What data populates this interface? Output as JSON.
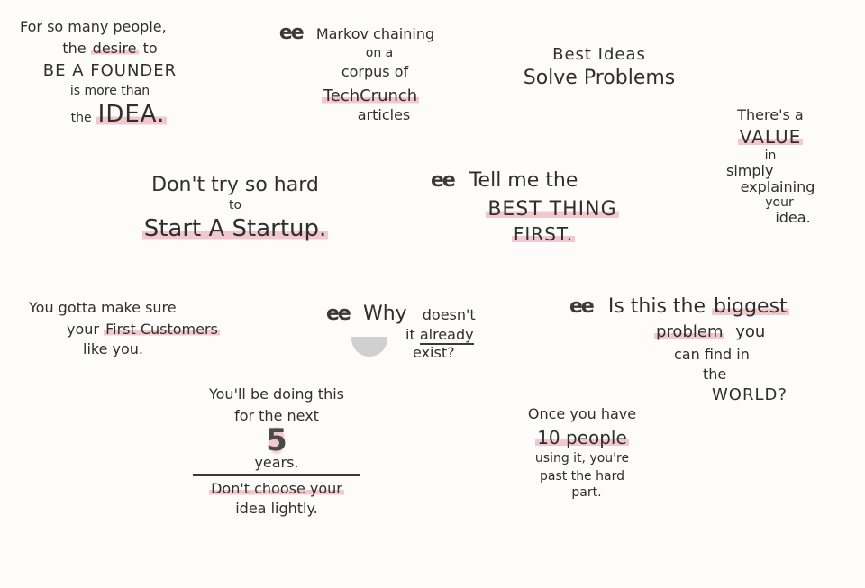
{
  "notes": {
    "founder": {
      "line1": "For so many people,",
      "line2_pre": "the",
      "line2_hl": "desire",
      "line2_post": "to",
      "line3": "BE A FOUNDER",
      "line4": "is more than",
      "line5_pre": "the",
      "line5_hl": "IDEA."
    },
    "markov": {
      "quote": "ee",
      "line1": "Markov chaining",
      "line2": "on a",
      "line3": "corpus of",
      "line4": "TechCrunch",
      "line5": "articles"
    },
    "best_ideas": {
      "line1": "Best Ideas",
      "line2": "Solve Problems"
    },
    "value": {
      "line1": "There's a",
      "line2": "VALUE",
      "line3": "in",
      "line4": "simply",
      "line5": "explaining",
      "line6": "your",
      "line7": "idea."
    },
    "dont_try": {
      "line1": "Don't try so hard",
      "line2": "to",
      "line3": "Start A Startup."
    },
    "tell_me": {
      "quote": "ee",
      "line1": "Tell me the",
      "line2": "BEST THING",
      "line3": "FIRST."
    },
    "customers": {
      "line1": "You gotta make sure",
      "line2_pre": "your",
      "line2_hl": "First Customers",
      "line3": "like you."
    },
    "why": {
      "quote": "ee",
      "word_why": "Why",
      "line1": "doesn't",
      "line2_pre": "it",
      "line2_hl": "already",
      "line3": "exist?"
    },
    "biggest": {
      "quote": "ee",
      "line1_pre": "Is this the",
      "line1_hl": "biggest",
      "line2_hl": "problem",
      "line2_post": "you",
      "line3": "can find in",
      "line4": "the",
      "line5": "WORLD?"
    },
    "five_years": {
      "line1": "You'll be doing this",
      "line2": "for the next",
      "line3": "5",
      "line4": "years.",
      "line5": "Don't choose your",
      "line6": "idea lightly."
    },
    "ten_people": {
      "line1": "Once you have",
      "line2": "10 people",
      "line3": "using it, you're",
      "line4": "past the hard",
      "line5": "part."
    }
  }
}
